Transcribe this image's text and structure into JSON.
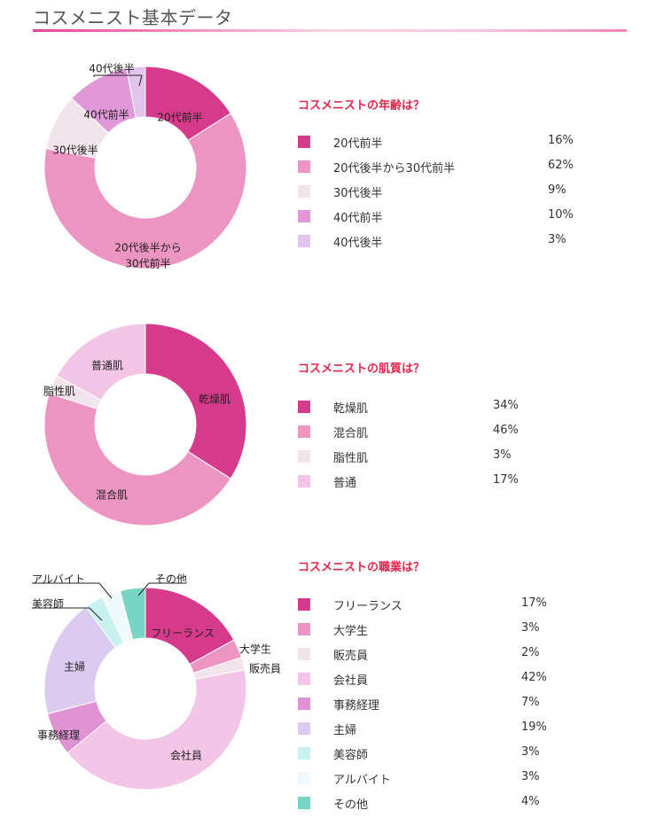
{
  "page": {
    "title": "コスメニスト基本データ"
  },
  "chart_data": [
    {
      "type": "pie",
      "title": "コスメニストの年齢は？",
      "categories": [
        "20代前半",
        "20代後半から30代前半",
        "30代後半",
        "40代前半",
        "40代後半"
      ],
      "values": [
        16,
        62,
        9,
        10,
        3
      ],
      "units": "%",
      "colors": [
        "#d63a8b",
        "#ec94c2",
        "#f1e4ea",
        "#e098d8",
        "#e3c4ec"
      ],
      "slice_labels": [
        "20代前半",
        "20代後半から\n30代前半",
        "30代後半",
        "40代前半",
        "40代後半"
      ],
      "legend": {
        "placement": "right"
      }
    },
    {
      "type": "pie",
      "title": "コスメニストの肌質は？",
      "categories": [
        "乾燥肌",
        "混合肌",
        "脂性肌",
        "普通"
      ],
      "values": [
        34,
        46,
        3,
        17
      ],
      "units": "%",
      "colors": [
        "#d63a8b",
        "#ec94c2",
        "#f1e4ea",
        "#f3c6e8"
      ],
      "slice_labels": [
        "乾燥肌",
        "混合肌",
        "脂性肌",
        "普通肌"
      ],
      "legend": {
        "placement": "right"
      }
    },
    {
      "type": "pie",
      "title": "コスメニストの職業は？",
      "categories": [
        "フリーランス",
        "大学生",
        "販売員",
        "会社員",
        "事務経理",
        "主婦",
        "美容師",
        "アルバイト",
        "その他"
      ],
      "values": [
        17,
        3,
        2,
        42,
        7,
        19,
        3,
        3,
        4
      ],
      "units": "%",
      "colors": [
        "#d63a8b",
        "#ec94c2",
        "#f1e4ea",
        "#f3c6e8",
        "#df93d3",
        "#dccbf1",
        "#c8f1ef",
        "#eefafb",
        "#78d5c3"
      ],
      "slice_labels": [
        "フリーランス",
        "大学生",
        "販売員",
        "会社員",
        "事務経理",
        "主婦",
        "美容師",
        "アルバイト",
        "その他"
      ],
      "legend": {
        "placement": "right"
      }
    }
  ]
}
